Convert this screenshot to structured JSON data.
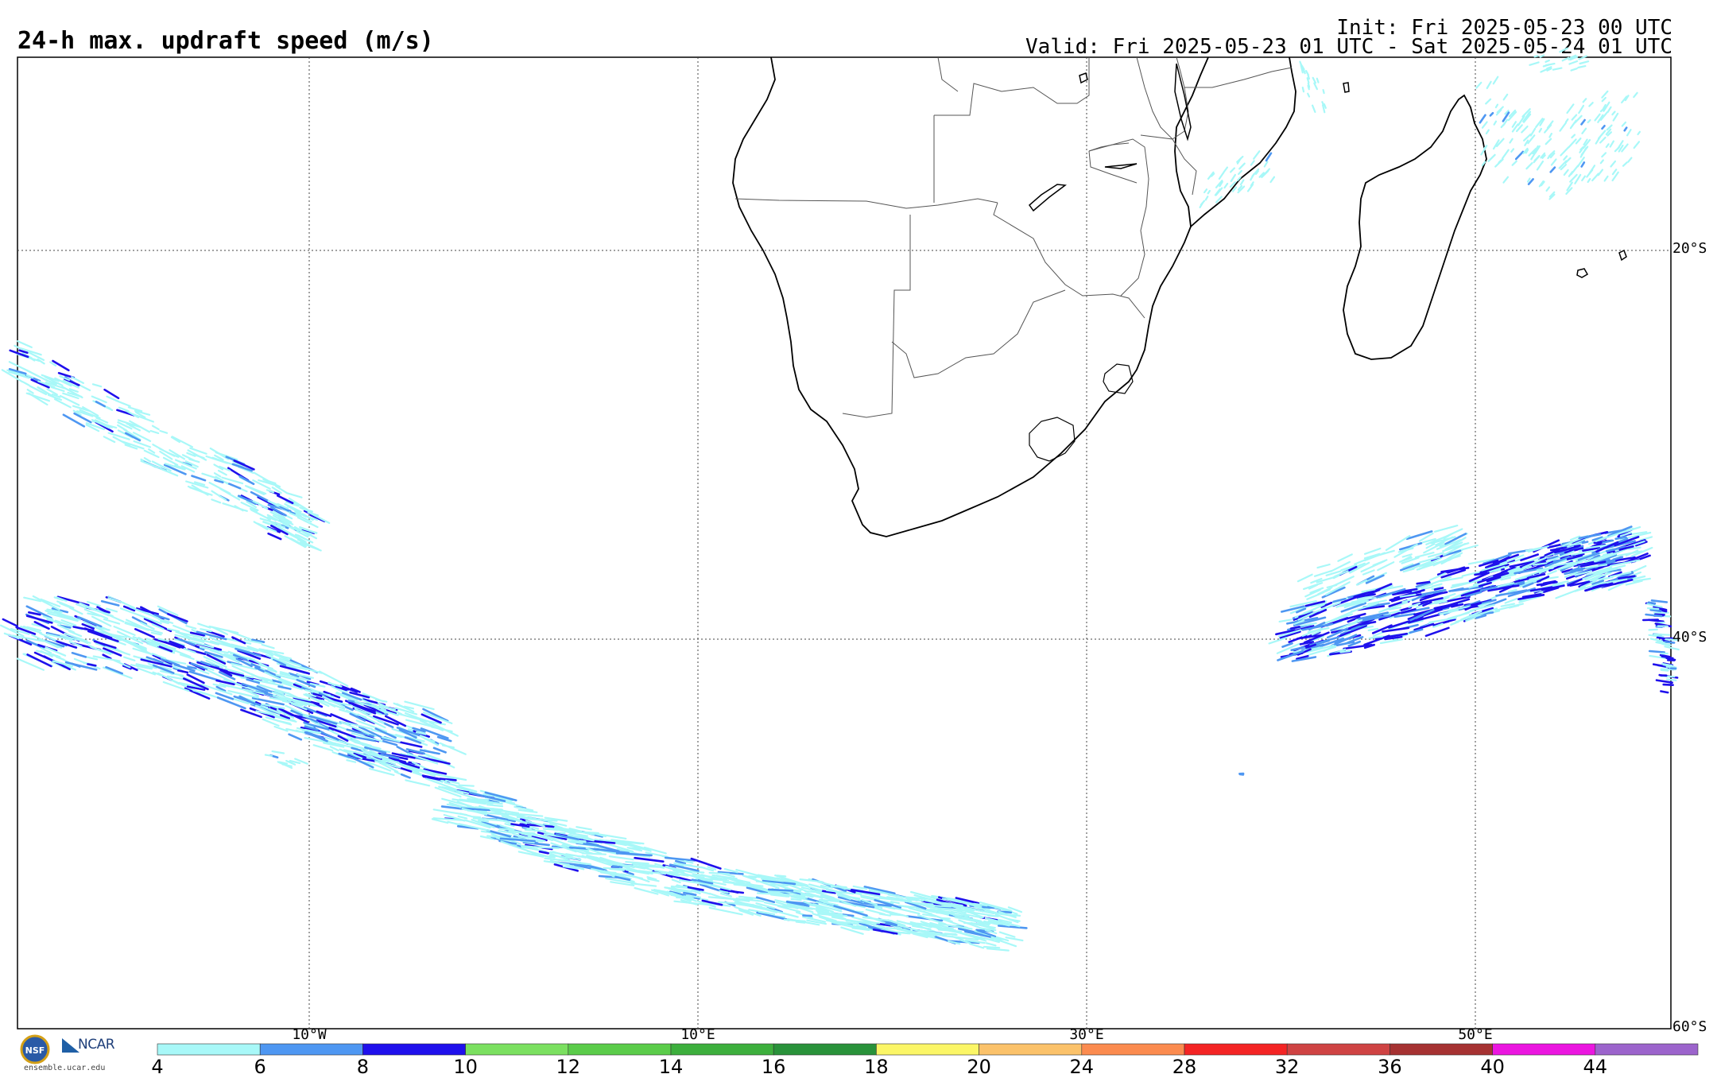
{
  "header": {
    "title": "24-h max. updraft speed (m/s)",
    "init": "Init: Fri 2025-05-23 00 UTC",
    "valid": "Valid: Fri 2025-05-23 01 UTC - Sat 2025-05-24 01 UTC"
  },
  "grid": {
    "lat_labels": [
      "20°S",
      "40°S",
      "60°S"
    ],
    "lon_labels": [
      "10°W",
      "10°E",
      "30°E",
      "50°E"
    ]
  },
  "colorbar": {
    "ticks": [
      "4",
      "6",
      "8",
      "10",
      "12",
      "14",
      "16",
      "18",
      "20",
      "24",
      "28",
      "32",
      "36",
      "40",
      "44"
    ],
    "colors": [
      "#a8f8f8",
      "#4e97f2",
      "#1f10ec",
      "#7be060",
      "#5bcc4a",
      "#3daf3d",
      "#29923a",
      "#fbf666",
      "#fbc26a",
      "#fb8b4f",
      "#f42424",
      "#cf4343",
      "#a63232",
      "#eb16e0",
      "#9c64cc"
    ]
  },
  "logos": {
    "nsf": "NSF",
    "ncar": "NCAR",
    "site": "ensemble.ucar.edu"
  },
  "colors": {
    "light": "#a8f8f8",
    "mid": "#4e97f2",
    "dark": "#1f10ec"
  }
}
